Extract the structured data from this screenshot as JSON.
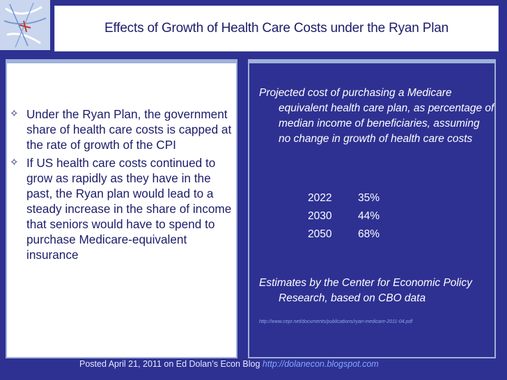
{
  "title": "Effects of Growth of Health Care Costs under the Ryan Plan",
  "left": {
    "bullets": [
      "Under the Ryan Plan, the government share of health care costs is capped at the rate of growth of the CPI",
      "If US health care costs continued to grow as rapidly as they have in the past, the Ryan plan would lead to a steady increase in the share of income that seniors would have to spend to purchase Medicare-equivalent insurance"
    ]
  },
  "right": {
    "projection_text": "Projected cost of purchasing a Medicare equivalent health care plan, as percentage of median income of beneficiaries, assuming no change in growth of health care costs",
    "table": [
      {
        "year": "2022",
        "pct": "35%"
      },
      {
        "year": "2030",
        "pct": "44%"
      },
      {
        "year": "2050",
        "pct": "68%"
      }
    ],
    "estimates_text": "Estimates by the Center for Economic Policy Research, based on CBO data",
    "url": "http://www.cepr.net/documents/publications/ryan-medicare-2011-04.pdf"
  },
  "footer": {
    "text": "Posted April 21, 2011 on Ed Dolan’s Econ Blog",
    "link": "http://dolanecon.blogspot.com"
  },
  "colors": {
    "background": "#2e3192",
    "panel_border": "#9fb1da",
    "title_text": "#1c1c6a"
  },
  "icons": [
    "decorative-sketch-icon",
    "four-point-star-icon"
  ]
}
